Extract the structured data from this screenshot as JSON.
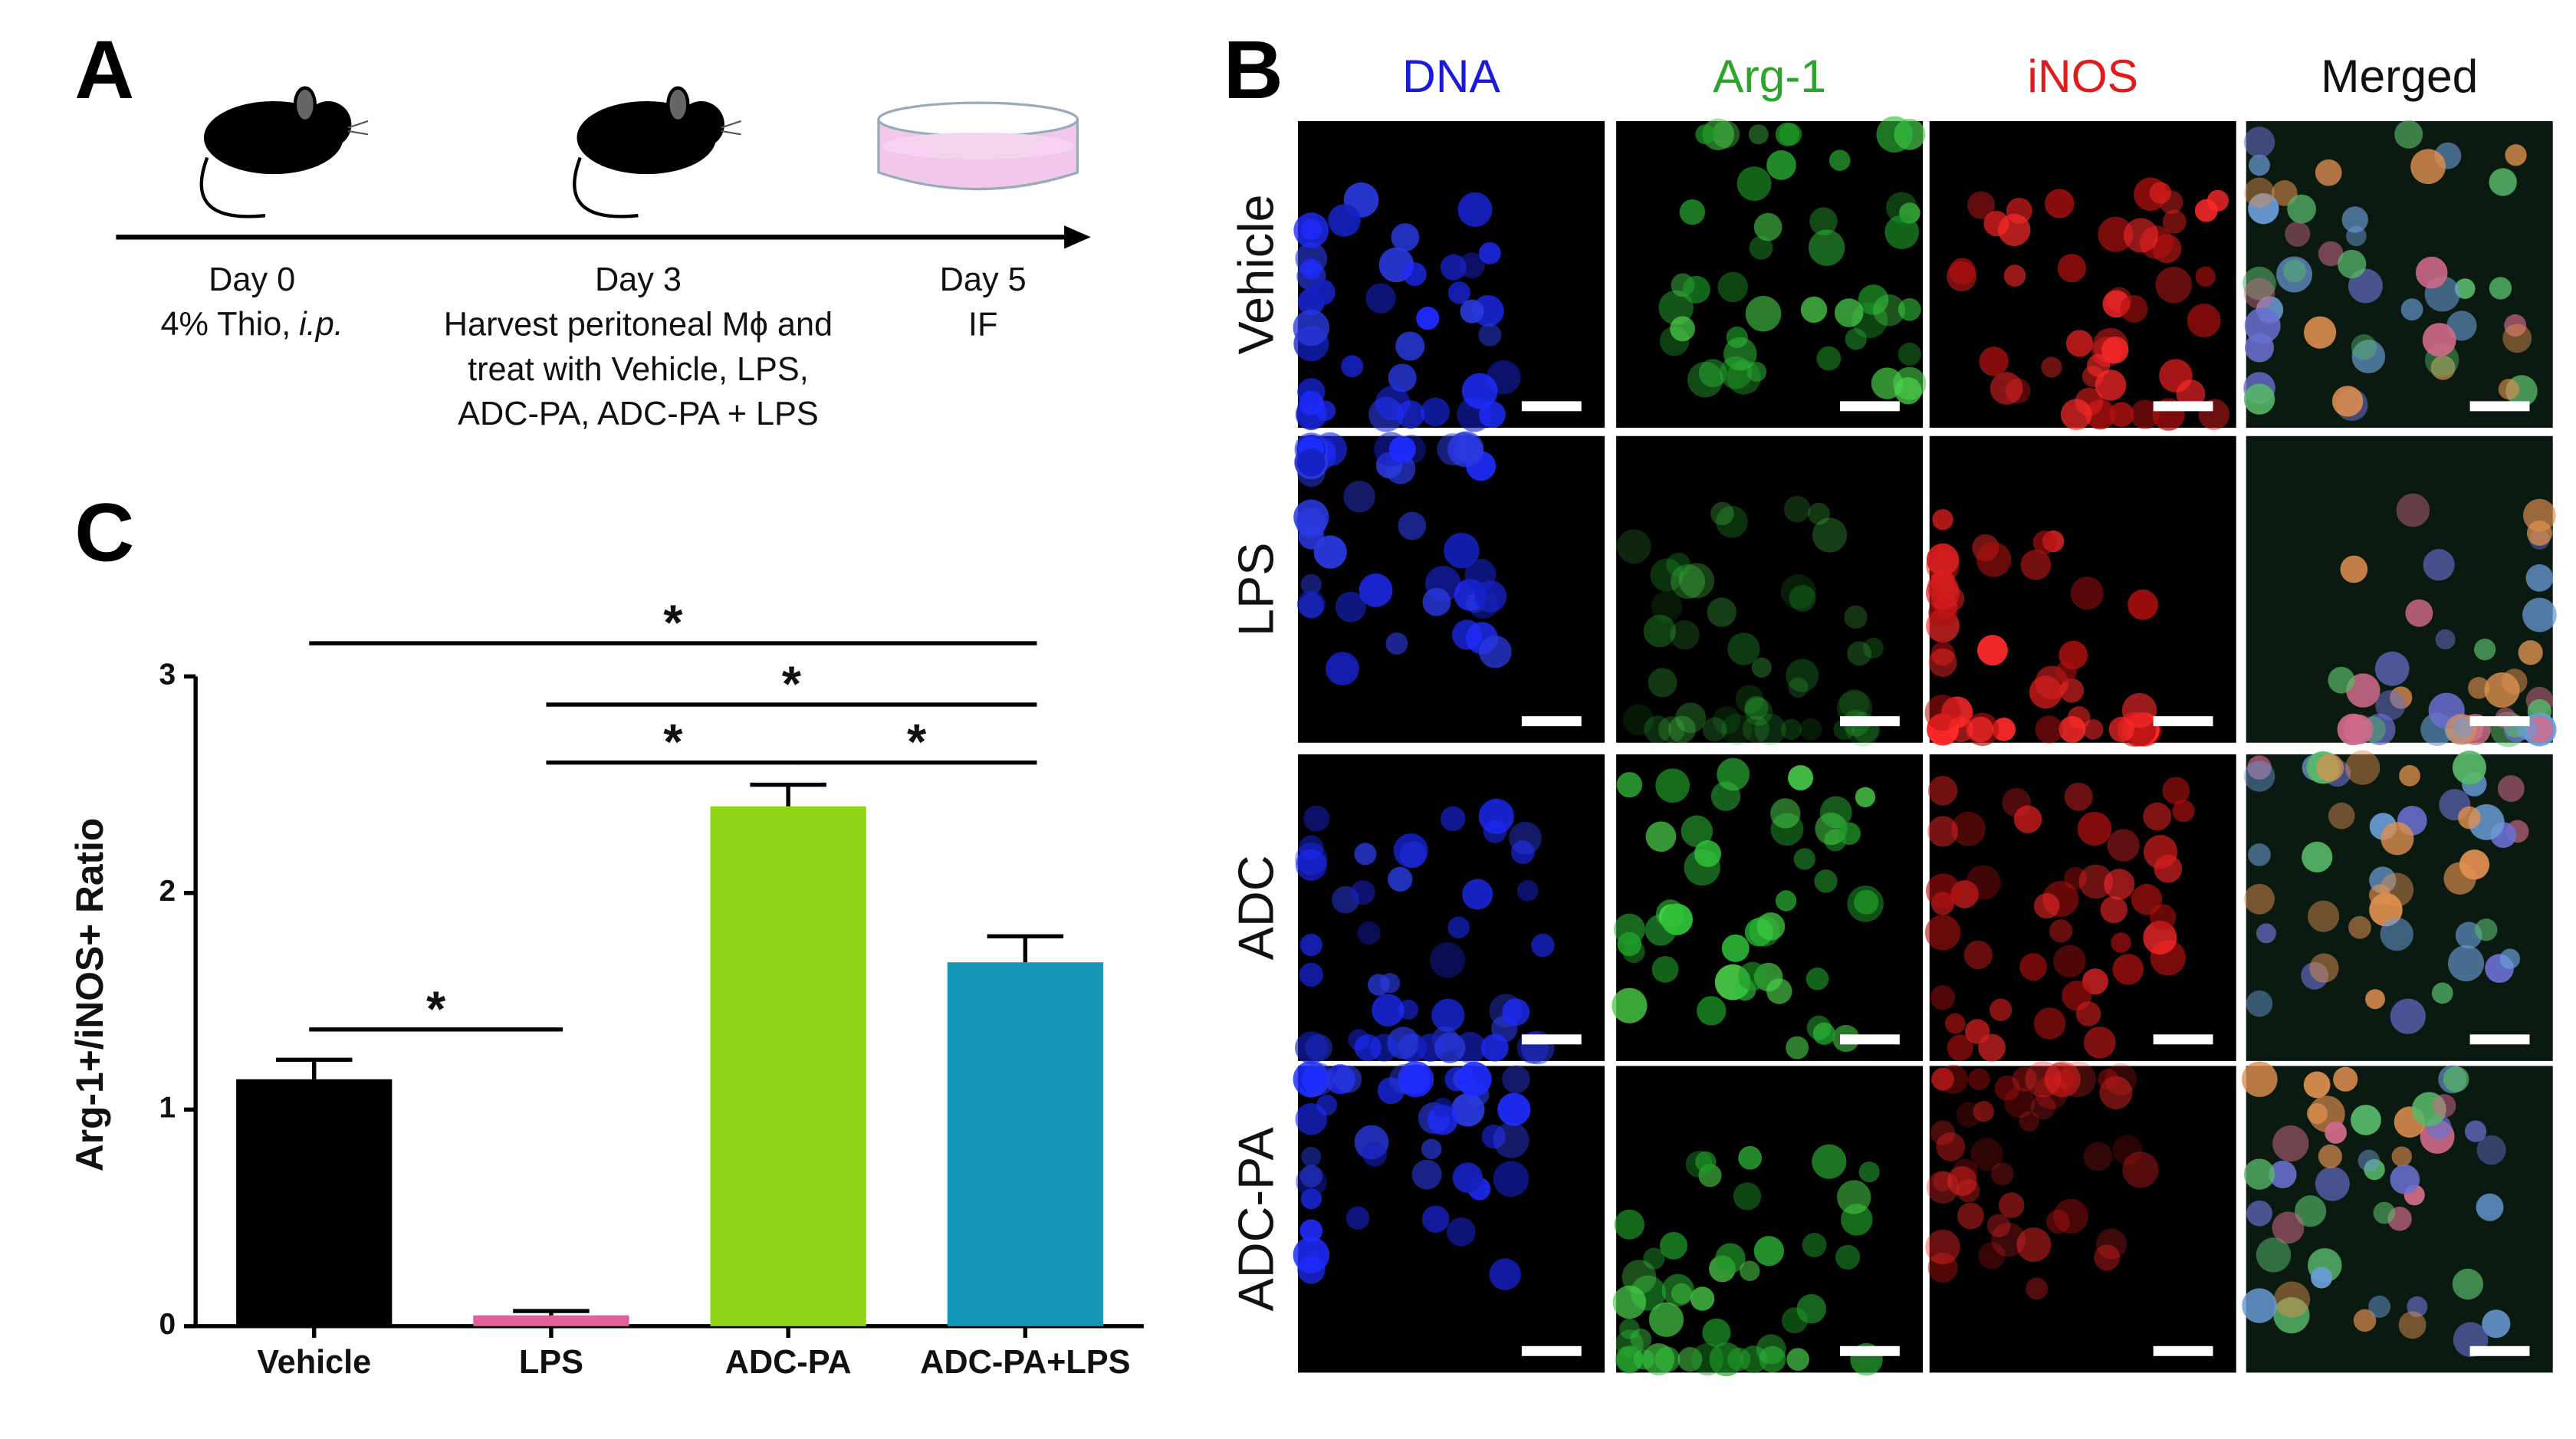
{
  "panel_a": {
    "label": "A",
    "steps": [
      {
        "day": "Day 0",
        "lines": [
          "4% Thio,"
        ],
        "italic": "i.p."
      },
      {
        "day": "Day 3",
        "lines": [
          "Harvest peritoneal Mϕ and",
          "treat with Vehicle,  LPS,",
          "ADC-PA, ADC-PA + LPS"
        ]
      },
      {
        "day": "Day 5",
        "lines": [
          "IF"
        ]
      }
    ]
  },
  "panel_b": {
    "label": "B",
    "columns": [
      "DNA",
      "Arg-1",
      "iNOS",
      "Merged"
    ],
    "rows": [
      "Vehicle",
      "LPS",
      "ADC",
      "ADC-PA"
    ]
  },
  "panel_c": {
    "label": "C"
  },
  "chart_data": {
    "type": "bar",
    "y_label": "Arg-1+/iNOS+ Ratio",
    "categories": [
      "Vehicle",
      "LPS",
      "ADC-PA",
      "ADC-PA+LPS"
    ],
    "values": [
      1.14,
      0.05,
      2.4,
      1.68
    ],
    "errors": [
      0.09,
      0.02,
      0.1,
      0.12
    ],
    "colors": [
      "#000000",
      "#e0609a",
      "#8fd61a",
      "#1497b5"
    ],
    "ylim": [
      0,
      3
    ],
    "yticks": [
      0,
      1,
      2,
      3
    ],
    "significance": [
      {
        "between": [
          "Vehicle",
          "ADC-PA+LPS"
        ],
        "text": "*"
      },
      {
        "between": [
          "LPS",
          "ADC-PA+LPS"
        ],
        "text": "*"
      },
      {
        "between": [
          "LPS",
          "ADC-PA"
        ],
        "text": "*"
      },
      {
        "between": [
          "ADC-PA",
          "ADC-PA+LPS"
        ],
        "text": "*"
      },
      {
        "between": [
          "Vehicle",
          "LPS"
        ],
        "text": "*"
      }
    ]
  }
}
